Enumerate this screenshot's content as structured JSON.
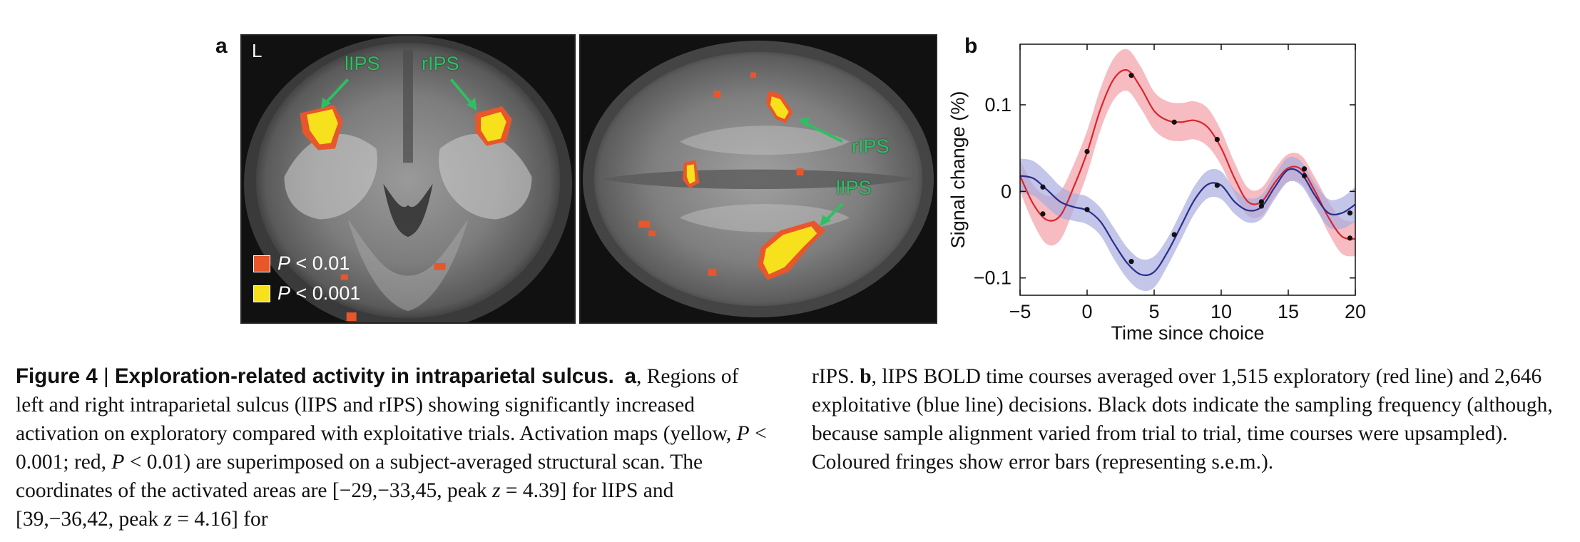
{
  "panel_a": {
    "letter": "a",
    "corner_label": "L",
    "coronal_labels": [
      "lIPS",
      "rIPS"
    ],
    "axial_labels": [
      "rIPS",
      "lIPS"
    ],
    "legend": [
      {
        "label_prefix": "P",
        "label_rest": " < 0.01",
        "color": "#e8562c"
      },
      {
        "label_prefix": "P",
        "label_rest": " < 0.001",
        "color": "#f7e01c"
      }
    ]
  },
  "panel_b": {
    "letter": "b"
  },
  "chart_data": {
    "type": "line",
    "ylabel": "Signal change (%)",
    "xlabel": "Time since choice",
    "xlim": [
      -5,
      20
    ],
    "ylim": [
      -0.12,
      0.17
    ],
    "x_ticks": [
      -5,
      0,
      5,
      10,
      15,
      20
    ],
    "x_tick_labels": [
      "−5",
      "0",
      "5",
      "10",
      "15",
      "20"
    ],
    "y_ticks": [
      -0.1,
      0,
      0.1
    ],
    "y_tick_labels": [
      "−0.1",
      "0",
      "0.1"
    ],
    "grid": false,
    "series": [
      {
        "color": "#d8262c",
        "fringe_color": "#f2a0a6",
        "x": [
          -5,
          -4,
          -3,
          -2,
          -1,
          0,
          1,
          2,
          3,
          4,
          5,
          6,
          7,
          8,
          9,
          10,
          11,
          12,
          13,
          14,
          15,
          16,
          17,
          18,
          19,
          20
        ],
        "y": [
          0.018,
          -0.015,
          -0.033,
          -0.028,
          0.005,
          0.045,
          0.095,
          0.13,
          0.14,
          0.12,
          0.093,
          0.082,
          0.08,
          0.082,
          0.074,
          0.05,
          0.015,
          -0.012,
          -0.012,
          0.01,
          0.027,
          0.025,
          0.0,
          -0.03,
          -0.052,
          -0.055
        ],
        "err": [
          0.018,
          0.022,
          0.028,
          0.028,
          0.026,
          0.025,
          0.024,
          0.024,
          0.024,
          0.024,
          0.022,
          0.022,
          0.022,
          0.022,
          0.022,
          0.02,
          0.018,
          0.016,
          0.016,
          0.016,
          0.016,
          0.016,
          0.016,
          0.018,
          0.02,
          0.02
        ],
        "samples_x": [
          -3.3,
          0,
          3.3,
          6.5,
          9.7,
          13,
          16.2,
          19.6
        ],
        "samples_y": [
          -0.026,
          0.046,
          0.134,
          0.08,
          0.06,
          -0.017,
          0.026,
          -0.054
        ]
      },
      {
        "color": "#2a2e8c",
        "fringe_color": "#a9acdf",
        "x": [
          -5,
          -4,
          -3,
          -2,
          -1,
          0,
          1,
          2,
          3,
          4,
          5,
          6,
          7,
          8,
          9,
          10,
          11,
          12,
          13,
          14,
          15,
          16,
          17,
          18,
          19,
          20
        ],
        "y": [
          0.018,
          0.015,
          0.002,
          -0.012,
          -0.018,
          -0.022,
          -0.035,
          -0.06,
          -0.083,
          -0.096,
          -0.093,
          -0.07,
          -0.04,
          -0.01,
          0.008,
          0.007,
          -0.012,
          -0.022,
          -0.018,
          0.005,
          0.025,
          0.02,
          -0.005,
          -0.025,
          -0.025,
          -0.015
        ],
        "err": [
          0.02,
          0.02,
          0.02,
          0.018,
          0.016,
          0.016,
          0.016,
          0.018,
          0.018,
          0.018,
          0.018,
          0.016,
          0.016,
          0.016,
          0.016,
          0.016,
          0.014,
          0.014,
          0.014,
          0.014,
          0.014,
          0.014,
          0.014,
          0.016,
          0.018,
          0.02
        ],
        "samples_x": [
          -3.3,
          0,
          3.3,
          6.5,
          9.7,
          13,
          16.2,
          19.6
        ],
        "samples_y": [
          0.005,
          -0.021,
          -0.081,
          -0.05,
          0.007,
          -0.012,
          0.018,
          -0.025
        ]
      }
    ]
  },
  "caption": {
    "fig_label": "Figure 4",
    "separator": " | ",
    "title": "Exploration-related activity in intraparietal sulcus.",
    "a_letter": "a",
    "left_rest": ", Regions of left and right intraparietal sulcus (lIPS and rIPS) showing significantly increased activation on exploratory compared with exploitative trials. Activation maps (yellow, ",
    "p1": "P",
    "seg1": " < 0.001; red, ",
    "p2": "P",
    "seg2": " < 0.01) are superimposed on a subject-averaged structural scan. The coordinates of the activated areas are [−29,−33,45, peak ",
    "z1": "z",
    "seg3": " = 4.39] for lIPS and [39,−36,42, peak ",
    "z2": "z",
    "seg4": " = 4.16] for",
    "right_start": "rIPS. ",
    "b_letter": "b",
    "right_rest": ", lIPS BOLD time courses averaged over 1,515 exploratory (red line) and 2,646 exploitative (blue line) decisions. Black dots indicate the sampling frequency (although, because sample alignment varied from trial to trial, time courses were upsampled). Coloured fringes show error bars (representing s.e.m.)."
  }
}
